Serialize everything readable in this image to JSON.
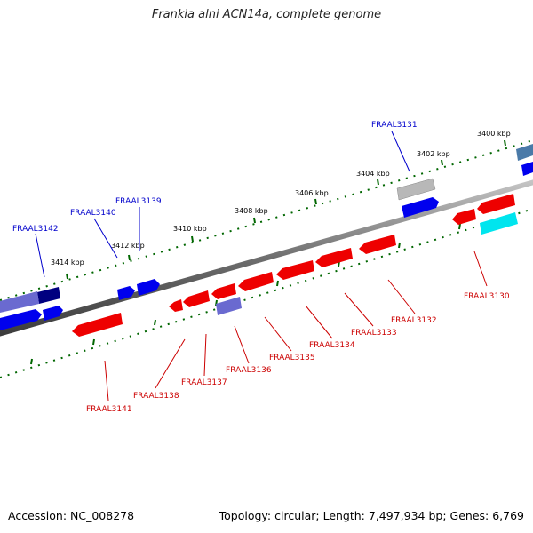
{
  "title": "Frankia alni ACN14a, complete genome",
  "footer": {
    "accession": "Accession: NC_008278",
    "summary": "Topology: circular; Length: 7,497,934 bp; Genes: 6,769"
  },
  "colors": {
    "forward_gene": "#0000ee",
    "reverse_gene": "#ee0000",
    "forward_label": "#0000cc",
    "reverse_label": "#cc0000",
    "backbone": "#777777",
    "tick": "#006600",
    "other_gene_grey": "#b0b0b0",
    "other_gene_cyan": "#00e5ee",
    "other_gene_navy": "#000080",
    "other_gene_slate": "#6a6ad0",
    "other_gene_steel": "#4a7aa8"
  },
  "scale_labels": [
    {
      "text": "3400 kbp"
    },
    {
      "text": "3402 kbp"
    },
    {
      "text": "3404 kbp"
    },
    {
      "text": "3406 kbp"
    },
    {
      "text": "3408 kbp"
    },
    {
      "text": "3410 kbp"
    },
    {
      "text": "3412 kbp"
    },
    {
      "text": "3414 kbp"
    }
  ],
  "gene_labels": {
    "forward": [
      {
        "text": "FRAAL3131"
      },
      {
        "text": "FRAAL3139"
      },
      {
        "text": "FRAAL3140"
      },
      {
        "text": "FRAAL3142"
      }
    ],
    "reverse": [
      {
        "text": "FRAAL3130"
      },
      {
        "text": "FRAAL3132"
      },
      {
        "text": "FRAAL3133"
      },
      {
        "text": "FRAAL3134"
      },
      {
        "text": "FRAAL3135"
      },
      {
        "text": "FRAAL3136"
      },
      {
        "text": "FRAAL3137"
      },
      {
        "text": "FRAAL3138"
      },
      {
        "text": "FRAAL3141"
      }
    ]
  }
}
